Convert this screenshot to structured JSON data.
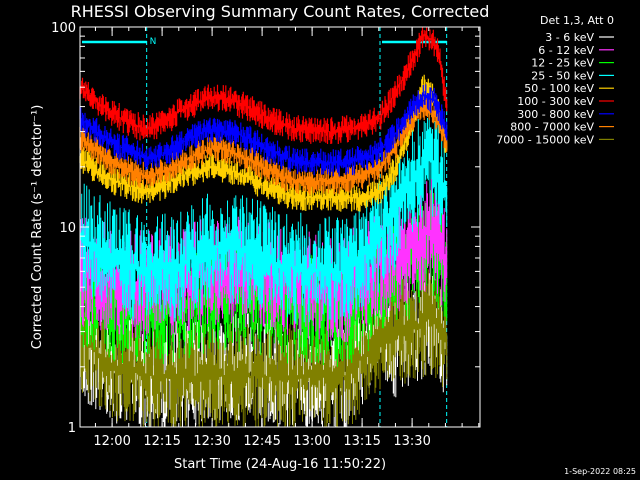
{
  "chart_data": {
    "type": "line",
    "title": "RHESSI Observing Summary Count Rates, Corrected",
    "xlabel": "Start Time (24-Aug-16 11:50:22)",
    "ylabel": "Corrected Count Rate (s⁻¹ detector⁻¹)",
    "y_scale": "log",
    "ylim": [
      1,
      100
    ],
    "y_ticks": [
      "1",
      "10",
      "100"
    ],
    "x_ticks": [
      "12:00",
      "12:15",
      "12:30",
      "12:45",
      "13:00",
      "13:15",
      "13:30"
    ],
    "x_unit": "minutes after 11:50:22",
    "legend_title": "Det 1,3, Att 0",
    "legend_position": "top-right, outside plot",
    "footer": "1-Sep-2022 08:25",
    "markers": {
      "night_label": "N",
      "night_intervals_minutes": [
        [
          0,
          20
        ],
        [
          90,
          110
        ]
      ],
      "vertical_dashed_minutes": [
        20,
        90,
        110
      ]
    },
    "series": [
      {
        "name": "3 - 6 keV",
        "color": "#ffffff",
        "x": [
          0,
          10,
          20,
          30,
          40,
          50,
          60,
          70,
          80,
          90,
          95,
          100,
          105,
          110
        ],
        "y": [
          2.5,
          2.0,
          1.8,
          1.8,
          2.0,
          2.0,
          1.8,
          1.8,
          1.8,
          3.5,
          2.5,
          3.0,
          3.5,
          2.5
        ]
      },
      {
        "name": "6 - 12 keV",
        "color": "#ff33ff",
        "x": [
          0,
          10,
          20,
          30,
          40,
          50,
          60,
          70,
          80,
          90,
          95,
          100,
          105,
          110
        ],
        "y": [
          6.0,
          5.5,
          5.0,
          5.5,
          6.0,
          6.0,
          5.5,
          5.0,
          5.0,
          6.5,
          7.0,
          8.0,
          9.5,
          7.0
        ]
      },
      {
        "name": "12 - 25 keV",
        "color": "#00ff00",
        "x": [
          0,
          10,
          20,
          30,
          40,
          50,
          60,
          70,
          80,
          90,
          95,
          100,
          105,
          110
        ],
        "y": [
          4.5,
          4.0,
          3.8,
          4.0,
          4.5,
          4.5,
          4.0,
          3.8,
          3.8,
          5.0,
          5.5,
          7.0,
          9.0,
          6.0
        ]
      },
      {
        "name": "25 - 50 keV",
        "color": "#00ffff",
        "x": [
          0,
          10,
          20,
          30,
          40,
          50,
          60,
          70,
          80,
          90,
          95,
          100,
          105,
          110
        ],
        "y": [
          9.0,
          7.0,
          6.0,
          6.5,
          8.0,
          7.5,
          6.5,
          6.0,
          6.0,
          9.0,
          12.0,
          18.0,
          22.0,
          15.0
        ]
      },
      {
        "name": "50 - 100 keV",
        "color": "#ffd000",
        "x": [
          0,
          5,
          10,
          15,
          20,
          25,
          30,
          35,
          40,
          45,
          50,
          55,
          60,
          65,
          70,
          75,
          80,
          85,
          90,
          95,
          100,
          103,
          106,
          108,
          110
        ],
        "y": [
          22,
          19,
          17,
          16,
          15,
          16,
          18,
          19,
          20,
          19,
          18,
          16,
          15,
          14,
          14,
          14,
          14,
          14,
          15,
          20,
          35,
          50,
          45,
          35,
          25
        ]
      },
      {
        "name": "100 - 300 keV",
        "color": "#ff0000",
        "x": [
          0,
          5,
          10,
          15,
          20,
          25,
          30,
          35,
          40,
          45,
          50,
          55,
          60,
          65,
          70,
          75,
          80,
          85,
          90,
          95,
          100,
          103,
          106,
          108,
          110
        ],
        "y": [
          50,
          42,
          37,
          33,
          31,
          33,
          38,
          42,
          45,
          43,
          40,
          36,
          33,
          31,
          30,
          30,
          31,
          32,
          35,
          48,
          70,
          92,
          85,
          70,
          40
        ]
      },
      {
        "name": "300 - 800 keV",
        "color": "#0000ff",
        "x": [
          0,
          5,
          10,
          15,
          20,
          25,
          30,
          35,
          40,
          45,
          50,
          55,
          60,
          65,
          70,
          75,
          80,
          85,
          90,
          95,
          100,
          103,
          106,
          108,
          110
        ],
        "y": [
          35,
          30,
          26,
          24,
          22,
          23,
          26,
          29,
          31,
          30,
          28,
          25,
          23,
          21,
          21,
          21,
          21,
          22,
          24,
          30,
          40,
          45,
          43,
          38,
          30
        ]
      },
      {
        "name": "800 - 7000 keV",
        "color": "#ff8000",
        "x": [
          0,
          5,
          10,
          15,
          20,
          25,
          30,
          35,
          40,
          45,
          50,
          55,
          60,
          65,
          70,
          75,
          80,
          85,
          90,
          95,
          100,
          103,
          106,
          108,
          110
        ],
        "y": [
          28,
          24,
          21,
          19,
          18,
          19,
          21,
          23,
          25,
          24,
          22,
          20,
          18,
          17,
          17,
          17,
          17,
          18,
          20,
          26,
          35,
          40,
          38,
          33,
          25
        ]
      },
      {
        "name": "7000 - 15000 keV",
        "color": "#808000",
        "x": [
          0,
          10,
          20,
          30,
          40,
          50,
          60,
          70,
          80,
          90,
          95,
          100,
          105,
          110
        ],
        "y": [
          2.8,
          2.0,
          1.8,
          1.8,
          1.8,
          1.8,
          1.8,
          1.8,
          1.8,
          2.8,
          3.0,
          3.2,
          3.5,
          2.8
        ]
      }
    ]
  }
}
